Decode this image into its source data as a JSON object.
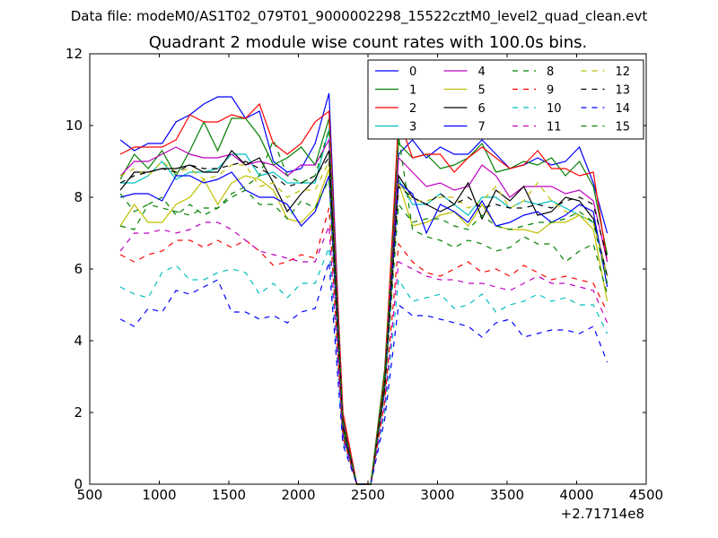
{
  "suptitle": "Data file: modeM0/AS1T02_079T01_9000002298_15522cztM0_level2_quad_clean.evt",
  "chart_data": {
    "type": "line",
    "title": "Quadrant 2 module wise count rates with 100.0s bins.",
    "xlabel": "",
    "ylabel": "",
    "x_offset_label": "+2.71714e8",
    "xlim": [
      500,
      4500
    ],
    "ylim": [
      0,
      12
    ],
    "xticks": [
      "500",
      "1000",
      "1500",
      "2000",
      "2500",
      "3000",
      "3500",
      "4000",
      "4500"
    ],
    "yticks": [
      "0",
      "2",
      "4",
      "6",
      "8",
      "10",
      "12"
    ],
    "grid": false,
    "legend_position": "top-right",
    "legend_columns": 4,
    "x": [
      720,
      820,
      920,
      1020,
      1120,
      1220,
      1320,
      1420,
      1520,
      1620,
      1720,
      1820,
      1920,
      2020,
      2120,
      2220,
      2320,
      2420,
      2520,
      2620,
      2720,
      2820,
      2920,
      3020,
      3120,
      3220,
      3320,
      3420,
      3520,
      3620,
      3720,
      3820,
      3920,
      4020,
      4120,
      4220
    ],
    "series": [
      {
        "name": "0",
        "color": "#0000ff",
        "dash": "solid",
        "values": [
          9.6,
          9.3,
          9.5,
          9.5,
          10.1,
          10.3,
          10.6,
          10.8,
          10.8,
          10.2,
          10.4,
          9.0,
          8.7,
          8.8,
          9.5,
          10.9,
          1.8,
          0.0,
          0.0,
          2.8,
          9.2,
          9.6,
          9.1,
          9.4,
          9.2,
          9.2,
          9.6,
          9.2,
          8.8,
          8.9,
          9.1,
          8.9,
          9.0,
          9.4,
          8.4,
          7.0
        ]
      },
      {
        "name": "1",
        "color": "#008000",
        "dash": "solid",
        "values": [
          8.5,
          9.2,
          8.8,
          9.3,
          8.6,
          9.3,
          10.1,
          9.3,
          10.2,
          10.2,
          9.7,
          8.9,
          9.1,
          9.4,
          8.9,
          10.2,
          1.9,
          0.0,
          0.0,
          3.2,
          9.5,
          9.1,
          9.2,
          8.8,
          8.9,
          9.1,
          9.5,
          8.7,
          8.8,
          9.0,
          8.9,
          9.1,
          8.6,
          9.0,
          8.3,
          6.4
        ]
      },
      {
        "name": "2",
        "color": "#ff0000",
        "dash": "solid",
        "values": [
          9.2,
          9.4,
          9.4,
          9.4,
          9.6,
          10.3,
          10.1,
          10.1,
          10.3,
          10.2,
          10.6,
          9.5,
          9.2,
          9.5,
          10.1,
          10.4,
          2.0,
          0.0,
          0.0,
          3.0,
          10.2,
          9.1,
          9.2,
          9.2,
          8.7,
          9.1,
          9.4,
          9.1,
          8.8,
          8.9,
          9.3,
          8.8,
          8.8,
          8.6,
          8.7,
          6.2
        ]
      },
      {
        "name": "3",
        "color": "#00bfbf",
        "dash": "solid",
        "values": [
          8.4,
          8.4,
          8.6,
          9.0,
          8.5,
          8.7,
          8.7,
          8.8,
          9.2,
          9.2,
          8.6,
          8.7,
          8.4,
          8.4,
          8.4,
          9.9,
          1.6,
          0.0,
          0.0,
          2.6,
          8.5,
          7.8,
          7.8,
          8.1,
          7.8,
          7.5,
          8.0,
          8.0,
          7.7,
          7.9,
          7.8,
          7.9,
          7.7,
          7.5,
          7.3,
          5.8
        ]
      },
      {
        "name": "4",
        "color": "#bf00bf",
        "dash": "solid",
        "values": [
          8.6,
          9.0,
          9.0,
          9.2,
          9.4,
          9.2,
          9.1,
          9.1,
          9.2,
          8.9,
          9.0,
          8.9,
          8.6,
          8.9,
          8.9,
          9.6,
          1.7,
          0.0,
          0.0,
          2.8,
          9.1,
          8.7,
          8.3,
          8.4,
          8.2,
          8.3,
          8.9,
          8.6,
          8.0,
          8.3,
          8.3,
          8.3,
          8.1,
          8.2,
          7.9,
          6.2
        ]
      },
      {
        "name": "5",
        "color": "#bfbf00",
        "dash": "solid",
        "values": [
          7.2,
          7.8,
          7.3,
          7.3,
          7.8,
          8.0,
          8.5,
          7.8,
          8.4,
          8.6,
          8.5,
          8.2,
          7.4,
          7.3,
          7.7,
          8.8,
          1.5,
          0.0,
          0.0,
          2.6,
          8.4,
          7.2,
          7.3,
          7.5,
          7.6,
          7.2,
          7.8,
          7.2,
          7.1,
          7.1,
          7.0,
          7.3,
          7.3,
          7.5,
          7.1,
          5.1
        ]
      },
      {
        "name": "6",
        "color": "#000000",
        "dash": "solid",
        "values": [
          8.2,
          8.7,
          8.7,
          8.8,
          8.8,
          8.9,
          8.7,
          8.7,
          9.3,
          8.9,
          9.1,
          8.4,
          7.6,
          8.1,
          8.5,
          9.3,
          1.6,
          0.0,
          0.0,
          2.8,
          8.6,
          8.0,
          7.8,
          7.6,
          7.8,
          8.4,
          7.4,
          8.2,
          7.9,
          8.3,
          7.5,
          7.6,
          8.0,
          7.9,
          7.4,
          5.8
        ]
      },
      {
        "name": "7",
        "color": "#0000ff",
        "dash": "solid",
        "values": [
          8.0,
          8.1,
          8.1,
          7.9,
          8.6,
          8.6,
          8.4,
          8.5,
          8.7,
          8.2,
          8.0,
          8.0,
          7.8,
          7.2,
          7.6,
          8.6,
          1.4,
          0.0,
          0.0,
          2.6,
          8.4,
          8.1,
          7.0,
          7.8,
          7.6,
          7.3,
          7.9,
          7.2,
          7.3,
          7.5,
          7.6,
          7.3,
          7.5,
          7.8,
          7.6,
          5.5
        ]
      },
      {
        "name": "8",
        "color": "#008000",
        "dash": "dashed",
        "values": [
          8.1,
          7.6,
          7.8,
          7.7,
          7.6,
          7.5,
          7.7,
          7.7,
          8.0,
          8.2,
          7.8,
          7.8,
          7.4,
          7.9,
          7.7,
          8.5,
          1.4,
          0.0,
          0.0,
          2.6,
          7.8,
          7.3,
          7.4,
          7.4,
          7.2,
          7.1,
          7.5,
          7.2,
          7.1,
          7.2,
          7.3,
          7.3,
          7.4,
          7.6,
          7.3,
          5.6
        ]
      },
      {
        "name": "9",
        "color": "#ff0000",
        "dash": "dashed",
        "values": [
          6.4,
          6.2,
          6.4,
          6.5,
          6.8,
          6.8,
          6.6,
          6.8,
          6.6,
          6.8,
          6.5,
          6.1,
          6.2,
          6.4,
          6.3,
          7.7,
          1.3,
          0.0,
          0.0,
          2.3,
          6.7,
          6.2,
          5.9,
          5.8,
          6.0,
          6.2,
          5.9,
          6.0,
          5.8,
          6.1,
          5.9,
          5.7,
          5.8,
          5.7,
          5.6,
          4.8
        ]
      },
      {
        "name": "10",
        "color": "#00bfbf",
        "dash": "dashed",
        "values": [
          5.5,
          5.3,
          5.2,
          5.9,
          6.1,
          5.7,
          5.7,
          5.9,
          6.0,
          5.9,
          5.3,
          5.6,
          5.2,
          5.6,
          5.6,
          6.6,
          1.2,
          0.0,
          0.0,
          2.0,
          5.7,
          5.1,
          5.2,
          5.3,
          4.9,
          5.0,
          5.3,
          4.8,
          5.0,
          5.1,
          5.3,
          5.1,
          5.2,
          5.0,
          5.0,
          4.2
        ]
      },
      {
        "name": "11",
        "color": "#bf00bf",
        "dash": "dashed",
        "values": [
          6.5,
          7.0,
          7.0,
          7.1,
          7.0,
          7.1,
          7.3,
          7.3,
          7.1,
          6.8,
          6.5,
          6.4,
          6.3,
          6.2,
          6.2,
          7.2,
          1.3,
          0.0,
          0.0,
          2.2,
          6.2,
          6.0,
          5.8,
          5.7,
          5.7,
          5.6,
          5.6,
          5.5,
          5.4,
          5.6,
          5.8,
          5.6,
          5.6,
          5.5,
          5.4,
          4.5
        ]
      },
      {
        "name": "12",
        "color": "#bfbf00",
        "dash": "dashed",
        "values": [
          8.6,
          8.8,
          8.6,
          9.0,
          8.7,
          8.8,
          8.5,
          8.6,
          8.9,
          8.9,
          8.3,
          8.4,
          8.0,
          8.2,
          8.2,
          9.0,
          1.6,
          0.0,
          0.0,
          2.7,
          8.4,
          7.9,
          7.9,
          8.0,
          8.0,
          7.7,
          7.9,
          8.3,
          7.7,
          7.9,
          8.4,
          7.9,
          7.6,
          7.5,
          7.3,
          5.8
        ]
      },
      {
        "name": "13",
        "color": "#000000",
        "dash": "dashed",
        "values": [
          8.4,
          8.6,
          8.7,
          8.8,
          8.7,
          8.9,
          8.8,
          8.8,
          8.9,
          9.0,
          8.8,
          8.6,
          8.3,
          8.4,
          8.6,
          9.1,
          1.6,
          0.0,
          0.0,
          2.7,
          8.3,
          8.0,
          7.8,
          8.1,
          7.8,
          8.0,
          7.7,
          7.8,
          7.7,
          7.7,
          7.8,
          7.7,
          7.9,
          8.0,
          7.8,
          6.3
        ]
      },
      {
        "name": "14",
        "color": "#0000ff",
        "dash": "dashed",
        "values": [
          4.6,
          4.4,
          4.9,
          4.8,
          5.4,
          5.3,
          5.5,
          5.7,
          4.8,
          4.8,
          4.6,
          4.7,
          4.5,
          4.8,
          4.9,
          6.2,
          1.1,
          0.0,
          0.0,
          1.8,
          5.0,
          4.7,
          4.7,
          4.6,
          4.5,
          4.4,
          4.1,
          4.5,
          4.6,
          4.1,
          4.2,
          4.3,
          4.3,
          4.2,
          4.4,
          3.4
        ]
      },
      {
        "name": "15",
        "color": "#008000",
        "dash": "dashed",
        "values": [
          7.2,
          7.1,
          7.8,
          8.0,
          7.5,
          7.8,
          7.5,
          7.7,
          8.1,
          8.3,
          8.6,
          9.6,
          8.6,
          8.4,
          8.6,
          9.9,
          1.7,
          0.0,
          0.0,
          2.9,
          9.7,
          7.1,
          6.9,
          6.8,
          6.6,
          6.8,
          6.7,
          6.5,
          6.6,
          6.9,
          6.7,
          6.7,
          6.2,
          6.5,
          6.7,
          5.3
        ]
      }
    ]
  }
}
